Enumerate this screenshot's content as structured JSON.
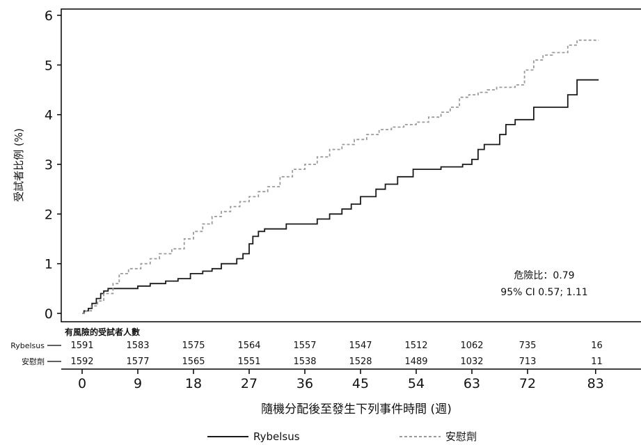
{
  "chart_data": {
    "type": "line",
    "xlabel": "隨機分配後至發生下列事件時間 (週)",
    "ylabel": "受試者比例 (%)",
    "ylim": [
      0,
      6
    ],
    "yticks": [
      0,
      1,
      2,
      3,
      4,
      5,
      6
    ],
    "xticks": [
      0,
      9,
      18,
      27,
      36,
      45,
      54,
      63,
      72,
      83
    ],
    "legend_position": "bottom",
    "annotation": {
      "line1": "危險比：0.79",
      "line2": "95% CI 0.57; 1.11"
    },
    "series": [
      {
        "name": "Rybelsus",
        "color": "#1a1a1a",
        "style": "solid",
        "x": [
          0,
          0.3,
          1.0,
          1.6,
          2.3,
          3.0,
          3.5,
          4.2,
          5.0,
          9.0,
          11.0,
          13.5,
          15.5,
          17.5,
          19.5,
          21.0,
          22.5,
          25.0,
          26.0,
          27.0,
          27.6,
          28.5,
          29.5,
          33.0,
          38.0,
          40.0,
          42.0,
          43.5,
          45.0,
          47.5,
          49.0,
          51.0,
          53.5,
          58.0,
          61.5,
          63.0,
          64.0,
          65.0,
          67.5,
          68.5,
          70.0,
          73.0,
          78.5,
          80.0,
          83.5
        ],
        "y": [
          0,
          0.05,
          0.1,
          0.2,
          0.3,
          0.4,
          0.45,
          0.5,
          0.5,
          0.55,
          0.6,
          0.65,
          0.7,
          0.8,
          0.85,
          0.9,
          1.0,
          1.1,
          1.2,
          1.4,
          1.55,
          1.65,
          1.7,
          1.8,
          1.9,
          2.0,
          2.1,
          2.2,
          2.35,
          2.5,
          2.6,
          2.75,
          2.9,
          2.95,
          3.0,
          3.1,
          3.3,
          3.4,
          3.6,
          3.8,
          3.9,
          4.15,
          4.4,
          4.7,
          4.7
        ]
      },
      {
        "name": "安慰劑",
        "color": "#9a9a9a",
        "style": "dashed",
        "x": [
          0,
          0.6,
          1.5,
          2.5,
          3.5,
          5.0,
          6.0,
          7.5,
          9.5,
          11.0,
          12.5,
          14.5,
          16.5,
          18.0,
          19.5,
          21.0,
          22.5,
          24.0,
          25.5,
          27.0,
          28.5,
          30.0,
          32.0,
          34.0,
          36.0,
          38.0,
          40.0,
          42.0,
          44.0,
          46.0,
          48.0,
          50.0,
          52.0,
          54.0,
          56.0,
          58.0,
          59.5,
          61.0,
          62.5,
          64.0,
          65.5,
          67.0,
          68.5,
          70.0,
          71.5,
          73.0,
          74.5,
          76.0,
          78.5,
          80.0,
          83.5
        ],
        "y": [
          0,
          0.05,
          0.15,
          0.25,
          0.4,
          0.6,
          0.8,
          0.9,
          1.0,
          1.1,
          1.2,
          1.3,
          1.5,
          1.65,
          1.8,
          1.95,
          2.05,
          2.15,
          2.25,
          2.35,
          2.45,
          2.55,
          2.75,
          2.9,
          3.0,
          3.15,
          3.3,
          3.4,
          3.5,
          3.6,
          3.7,
          3.75,
          3.8,
          3.85,
          3.95,
          4.05,
          4.15,
          4.35,
          4.4,
          4.45,
          4.5,
          4.55,
          4.55,
          4.6,
          4.9,
          5.1,
          5.2,
          5.25,
          5.4,
          5.5,
          5.5
        ]
      }
    ],
    "risk_table": {
      "title": "有風險的受試者人數",
      "rows": [
        {
          "label": "Rybelsus",
          "values": [
            "1591",
            "1583",
            "1575",
            "1564",
            "1557",
            "1547",
            "1512",
            "1062",
            "735",
            "16"
          ]
        },
        {
          "label": "安慰劑",
          "values": [
            "1592",
            "1577",
            "1565",
            "1551",
            "1538",
            "1528",
            "1489",
            "1032",
            "713",
            "11"
          ]
        }
      ]
    }
  }
}
